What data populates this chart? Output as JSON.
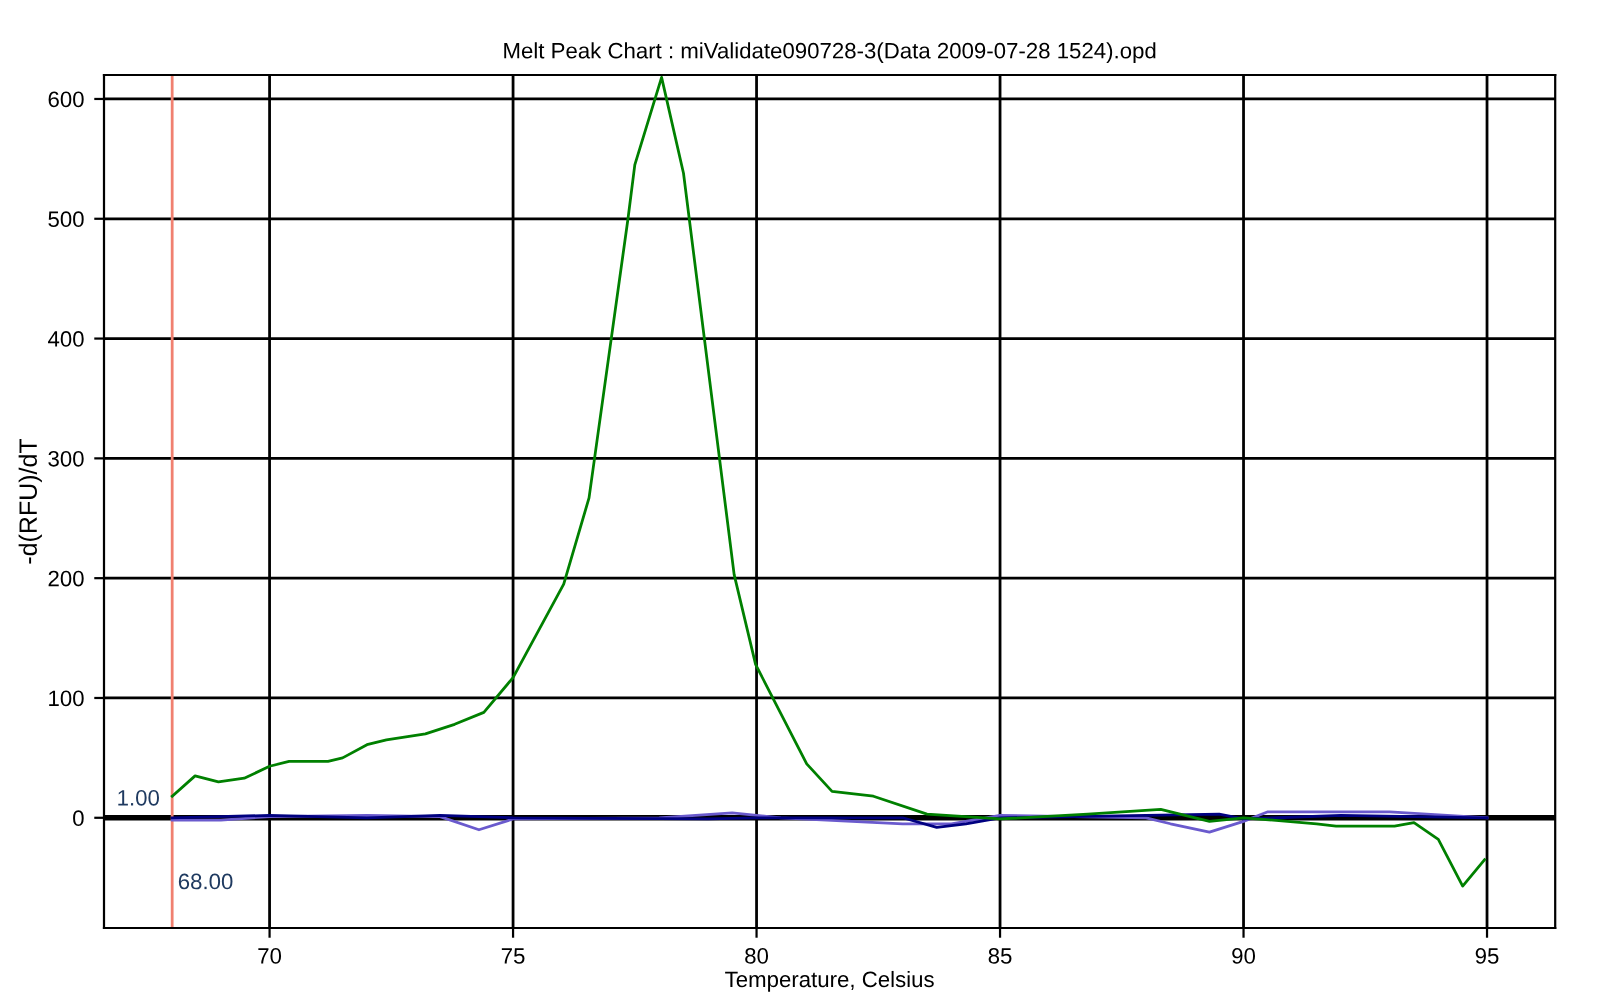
{
  "chart_data": {
    "type": "line",
    "title": "Melt Peak Chart : miValidate090728-3(Data 2009-07-28 1524).opd",
    "xlabel": "Temperature, Celsius",
    "ylabel": "-d(RFU)/dT",
    "xlim": [
      66.6,
      96.4
    ],
    "ylim": [
      -92,
      620
    ],
    "xticks": [
      70,
      75,
      80,
      85,
      90,
      95
    ],
    "yticks": [
      0,
      100,
      200,
      300,
      400,
      500,
      600
    ],
    "grid": true,
    "legend": false,
    "marker": "none",
    "line_style": "solid",
    "series": [
      {
        "color": "#6a5acd",
        "x": [
          68,
          69,
          70,
          72,
          73.5,
          74.3,
          75,
          78,
          79.5,
          80.5,
          83,
          84,
          85,
          88,
          88.5,
          89.3,
          90,
          90.5,
          93,
          95
        ],
        "values": [
          -2,
          -2,
          1,
          2,
          1,
          -10,
          -1,
          0,
          4,
          0,
          -5,
          -5,
          2,
          0,
          -5,
          -12,
          -3,
          5,
          5,
          0
        ]
      },
      {
        "color": "#000080",
        "x": [
          68,
          70,
          72,
          73.5,
          75,
          79,
          80,
          83,
          83.7,
          84.3,
          85,
          88,
          89.5,
          90,
          92,
          95
        ],
        "values": [
          0,
          2,
          0,
          2,
          0,
          -1,
          0,
          0,
          -8,
          -5,
          0,
          2,
          3,
          -1,
          2,
          0
        ]
      },
      {
        "color": "#008000",
        "x": [
          68.0,
          68.47,
          68.95,
          69.48,
          70.0,
          70.4,
          71.2,
          71.5,
          72.0,
          72.4,
          73.2,
          73.8,
          74.4,
          75.0,
          76.04,
          76.56,
          77.36,
          77.5,
          78.05,
          78.5,
          79.54,
          79.98,
          81.03,
          81.55,
          82.4,
          83.5,
          85.0,
          86.8,
          88.3,
          89.3,
          90.0,
          91.5,
          91.9,
          93.1,
          93.5,
          94.0,
          94.5,
          94.95
        ],
        "values": [
          18,
          35,
          30,
          33,
          43,
          47,
          47,
          50,
          61,
          65,
          70,
          78,
          88,
          117,
          195,
          267,
          500,
          545,
          618,
          538,
          203,
          128,
          45,
          22,
          18,
          3,
          -1,
          3,
          7,
          -3,
          0,
          -5,
          -7,
          -7,
          -4,
          -18,
          -57,
          -35
        ]
      }
    ],
    "ref_lines": [
      {
        "axis": "y",
        "value": 0,
        "color": "#000000"
      },
      {
        "axis": "x",
        "value": 68,
        "label": "68.00",
        "color": "#f08070"
      }
    ],
    "annotations": [
      {
        "text": "1.00",
        "x": 68,
        "y": 1
      }
    ]
  }
}
